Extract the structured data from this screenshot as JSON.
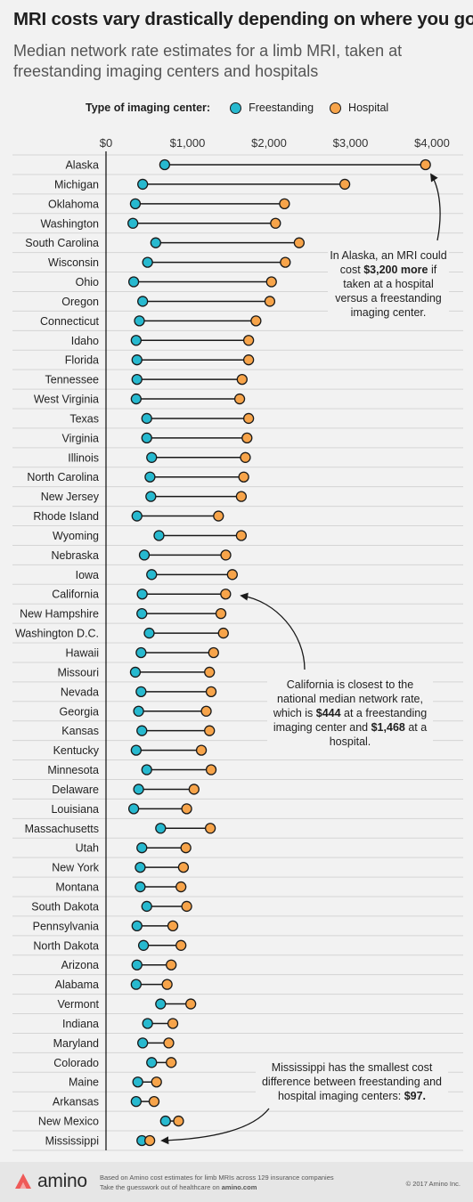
{
  "title": "MRI costs vary drastically depending on where you go",
  "subtitle": "Median network rate estimates for a limb MRI, taken at freestanding imaging centers and hospitals",
  "legend": {
    "title": "Type of imaging center:",
    "freestanding": "Freestanding",
    "hospital": "Hospital"
  },
  "colors": {
    "freestanding": "#27b9cf",
    "hospital": "#f7a44a",
    "connector": "#1a1a1a",
    "grid": "#d5d5d5"
  },
  "chart_data": {
    "type": "dumbbell",
    "x_ticks": [
      "$0",
      "$1,000",
      "$2,000",
      "$3,000",
      "$4,000"
    ],
    "x_tick_values": [
      0,
      1000,
      2000,
      3000,
      4000
    ],
    "xlim": [
      0,
      4300
    ],
    "series": [
      {
        "name": "Freestanding",
        "key": "freestanding"
      },
      {
        "name": "Hospital",
        "key": "hospital"
      }
    ],
    "states": [
      {
        "name": "Alaska",
        "freestanding": 720,
        "hospital": 3920
      },
      {
        "name": "Michigan",
        "freestanding": 450,
        "hospital": 2930
      },
      {
        "name": "Oklahoma",
        "freestanding": 360,
        "hospital": 2190
      },
      {
        "name": "Washington",
        "freestanding": 330,
        "hospital": 2080
      },
      {
        "name": "South Carolina",
        "freestanding": 610,
        "hospital": 2370
      },
      {
        "name": "Wisconsin",
        "freestanding": 510,
        "hospital": 2200
      },
      {
        "name": "Ohio",
        "freestanding": 340,
        "hospital": 2030
      },
      {
        "name": "Oregon",
        "freestanding": 450,
        "hospital": 2010
      },
      {
        "name": "Connecticut",
        "freestanding": 410,
        "hospital": 1840
      },
      {
        "name": "Idaho",
        "freestanding": 370,
        "hospital": 1750
      },
      {
        "name": "Florida",
        "freestanding": 380,
        "hospital": 1750
      },
      {
        "name": "Tennessee",
        "freestanding": 380,
        "hospital": 1670
      },
      {
        "name": "West Virginia",
        "freestanding": 370,
        "hospital": 1640
      },
      {
        "name": "Texas",
        "freestanding": 500,
        "hospital": 1750
      },
      {
        "name": "Virginia",
        "freestanding": 500,
        "hospital": 1730
      },
      {
        "name": "Illinois",
        "freestanding": 560,
        "hospital": 1710
      },
      {
        "name": "North Carolina",
        "freestanding": 540,
        "hospital": 1690
      },
      {
        "name": "New Jersey",
        "freestanding": 550,
        "hospital": 1660
      },
      {
        "name": "Rhode Island",
        "freestanding": 380,
        "hospital": 1380
      },
      {
        "name": "Wyoming",
        "freestanding": 650,
        "hospital": 1660
      },
      {
        "name": "Nebraska",
        "freestanding": 470,
        "hospital": 1470
      },
      {
        "name": "Iowa",
        "freestanding": 560,
        "hospital": 1550
      },
      {
        "name": "California",
        "freestanding": 444,
        "hospital": 1468
      },
      {
        "name": "New Hampshire",
        "freestanding": 440,
        "hospital": 1410
      },
      {
        "name": "Washington D.C.",
        "freestanding": 530,
        "hospital": 1440
      },
      {
        "name": "Hawaii",
        "freestanding": 430,
        "hospital": 1320
      },
      {
        "name": "Missouri",
        "freestanding": 360,
        "hospital": 1270
      },
      {
        "name": "Nevada",
        "freestanding": 430,
        "hospital": 1290
      },
      {
        "name": "Georgia",
        "freestanding": 400,
        "hospital": 1230
      },
      {
        "name": "Kansas",
        "freestanding": 440,
        "hospital": 1270
      },
      {
        "name": "Kentucky",
        "freestanding": 370,
        "hospital": 1170
      },
      {
        "name": "Minnesota",
        "freestanding": 500,
        "hospital": 1290
      },
      {
        "name": "Delaware",
        "freestanding": 400,
        "hospital": 1080
      },
      {
        "name": "Louisiana",
        "freestanding": 340,
        "hospital": 990
      },
      {
        "name": "Massachusetts",
        "freestanding": 670,
        "hospital": 1280
      },
      {
        "name": "Utah",
        "freestanding": 440,
        "hospital": 980
      },
      {
        "name": "New York",
        "freestanding": 420,
        "hospital": 950
      },
      {
        "name": "Montana",
        "freestanding": 420,
        "hospital": 920
      },
      {
        "name": "South Dakota",
        "freestanding": 500,
        "hospital": 990
      },
      {
        "name": "Pennsylvania",
        "freestanding": 380,
        "hospital": 820
      },
      {
        "name": "North Dakota",
        "freestanding": 460,
        "hospital": 920
      },
      {
        "name": "Arizona",
        "freestanding": 380,
        "hospital": 800
      },
      {
        "name": "Alabama",
        "freestanding": 370,
        "hospital": 750
      },
      {
        "name": "Vermont",
        "freestanding": 670,
        "hospital": 1040
      },
      {
        "name": "Indiana",
        "freestanding": 510,
        "hospital": 820
      },
      {
        "name": "Maryland",
        "freestanding": 450,
        "hospital": 770
      },
      {
        "name": "Colorado",
        "freestanding": 560,
        "hospital": 800
      },
      {
        "name": "Maine",
        "freestanding": 390,
        "hospital": 620
      },
      {
        "name": "Arkansas",
        "freestanding": 370,
        "hospital": 590
      },
      {
        "name": "New Mexico",
        "freestanding": 730,
        "hospital": 890
      },
      {
        "name": "Mississippi",
        "freestanding": 440,
        "hospital": 537
      }
    ]
  },
  "annotations": {
    "alaska": {
      "pre": "In Alaska, an MRI could cost ",
      "bold": "$3,200 more",
      "post": " if taken at a hospital versus a freestanding imaging center."
    },
    "california": {
      "pre": "California is closest to the national median network rate, which is ",
      "bold1": "$444",
      "mid": " at a freestanding imaging center and ",
      "bold2": "$1,468",
      "post": " at a hospital."
    },
    "mississippi": {
      "pre": "Mississippi has the smallest cost difference between freestanding and hospital imaging centers: ",
      "bold": "$97."
    }
  },
  "footer": {
    "brand": "amino",
    "line1": "Based on Amino cost estimates for limb MRIs across 129 insurance companies",
    "line2_pre": "Take the guesswork out of healthcare on ",
    "line2_link": "amino.com",
    "copyright": "© 2017 Amino Inc."
  }
}
